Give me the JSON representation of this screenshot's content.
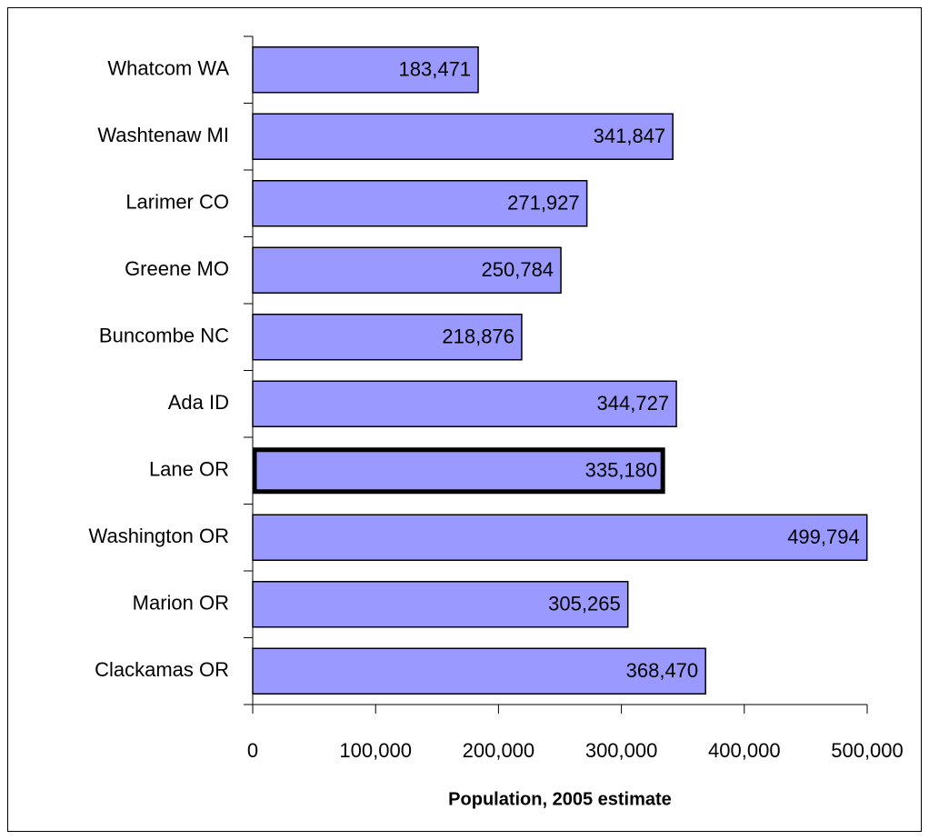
{
  "chart_data": {
    "type": "bar",
    "orientation": "horizontal",
    "x_label": "Population, 2005 estimate",
    "categories": [
      "Whatcom WA",
      "Washtenaw MI",
      "Larimer CO",
      "Greene MO",
      "Buncombe NC",
      "Ada ID",
      "Lane OR",
      "Washington OR",
      "Marion OR",
      "Clackamas OR"
    ],
    "values": [
      183471,
      341847,
      271927,
      250784,
      218876,
      344727,
      335180,
      499794,
      305265,
      368470
    ],
    "value_labels": [
      "183,471",
      "341,847",
      "271,927",
      "250,784",
      "218,876",
      "344,727",
      "335,180",
      "499,794",
      "305,265",
      "368,470"
    ],
    "color": "#9999ff",
    "highlight": 6,
    "xlim": [
      0,
      500000
    ],
    "xticks": [
      0,
      {
        "value": 100000,
        "label": "100,000"
      },
      {
        "value": 200000,
        "label": "200,000"
      },
      {
        "value": 300000,
        "label": "300,000"
      },
      {
        "value": 400000,
        "label": "400,000"
      },
      {
        "value": 500000,
        "label": "500,000"
      }
    ],
    "grid": false
  }
}
